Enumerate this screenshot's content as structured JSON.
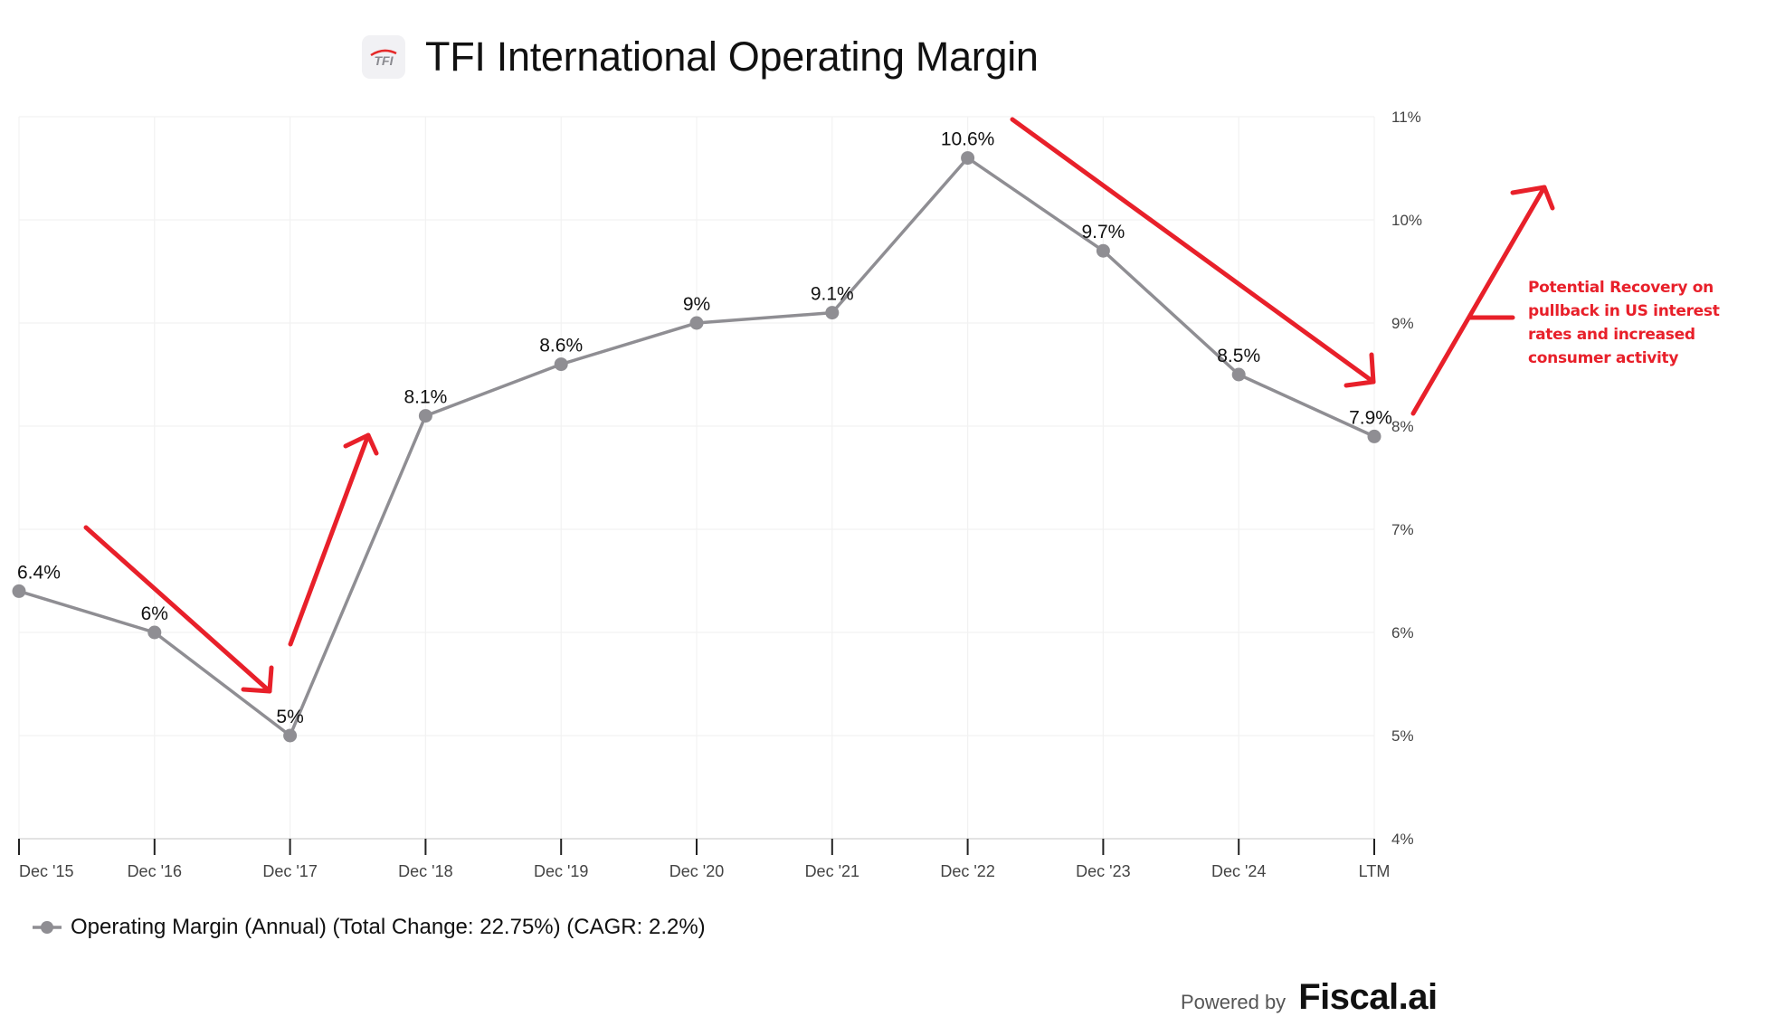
{
  "header": {
    "title": "TFI International Operating Margin",
    "logo_text": "TFI"
  },
  "legend": {
    "label": "Operating Margin (Annual) (Total Change: 22.75%) (CAGR: 2.2%)"
  },
  "footer": {
    "powered_by": "Powered by",
    "brand": "Fiscal.ai"
  },
  "annotation": {
    "lines": [
      "Potential Recovery on",
      "pullback in US interest",
      "rates and increased",
      "consumer activity"
    ]
  },
  "colors": {
    "series": "#8f8e93",
    "annotation": "#e8202a",
    "grid": "#f2f2f2",
    "axis": "#222222"
  },
  "chart_data": {
    "type": "line",
    "title": "TFI International Operating Margin",
    "xlabel": "",
    "ylabel": "",
    "categories": [
      "Dec '15",
      "Dec '16",
      "Dec '17",
      "Dec '18",
      "Dec '19",
      "Dec '20",
      "Dec '21",
      "Dec '22",
      "Dec '23",
      "Dec '24",
      "LTM"
    ],
    "series": [
      {
        "name": "Operating Margin (Annual)",
        "values": [
          6.4,
          6.0,
          5.0,
          8.1,
          8.6,
          9.0,
          9.1,
          10.6,
          9.7,
          8.5,
          7.9
        ],
        "labels": [
          "6.4%",
          "6%",
          "5%",
          "8.1%",
          "8.6%",
          "9%",
          "9.1%",
          "10.6%",
          "9.7%",
          "8.5%",
          "7.9%"
        ]
      }
    ],
    "ylim": [
      4,
      11
    ],
    "yticks": [
      4,
      5,
      6,
      7,
      8,
      9,
      10,
      11
    ],
    "ytick_labels": [
      "4%",
      "5%",
      "6%",
      "7%",
      "8%",
      "9%",
      "10%",
      "11%"
    ],
    "y_axis_side": "right",
    "grid": true,
    "legend_position": "bottom-left",
    "total_change": "22.75%",
    "cagr": "2.2%"
  }
}
